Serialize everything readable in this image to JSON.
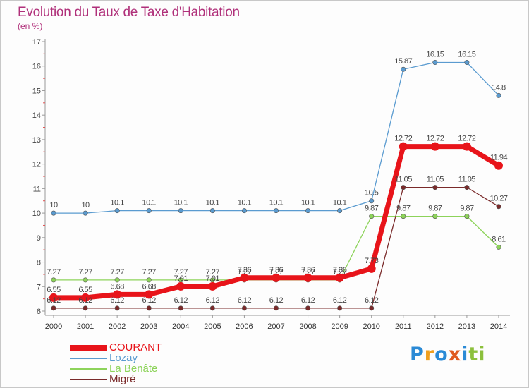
{
  "title": "Evolution du Taux de Taxe d'Habitation",
  "unit": "(en %)",
  "brand": {
    "letters": [
      "P",
      "r",
      "o",
      "x",
      "i",
      "t",
      "i"
    ],
    "colors": [
      "#2a8ad6",
      "#f0a020",
      "#2a8ad6",
      "#e05a20",
      "#2a8ad6",
      "#8cc03c",
      "#8cc03c"
    ]
  },
  "chart_data": {
    "type": "line",
    "title": "Evolution du Taux de Taxe d'Habitation",
    "ylabel": "(en %)",
    "xlabel": "",
    "ylim": [
      6,
      17
    ],
    "yticks": [
      6,
      7,
      8,
      9,
      10,
      11,
      12,
      13,
      14,
      15,
      16,
      17
    ],
    "x": [
      "2000",
      "2001",
      "2002",
      "2003",
      "2004",
      "2005",
      "2006",
      "2007",
      "2008",
      "2009",
      "2010",
      "2011",
      "2012",
      "2013",
      "2014"
    ],
    "grid": false,
    "legend_position": "bottom-left",
    "series": [
      {
        "name": "COURANT",
        "color": "#e8141a",
        "values": [
          6.55,
          6.55,
          6.68,
          6.68,
          7.01,
          7.01,
          7.36,
          7.36,
          7.36,
          7.36,
          7.73,
          12.72,
          12.72,
          12.72,
          11.94
        ],
        "labels": [
          "6.55",
          "6.55",
          "6.68",
          "6.68",
          "7.01",
          "7.01",
          "7.36",
          "7.36",
          "7.36",
          "7.36",
          "7.73",
          "12.72",
          "12.72",
          "12.72",
          "11.94"
        ]
      },
      {
        "name": "Lozay",
        "color": "#5a9bd0",
        "values": [
          10,
          10,
          10.1,
          10.1,
          10.1,
          10.1,
          10.1,
          10.1,
          10.1,
          10.1,
          10.5,
          15.87,
          16.15,
          16.15,
          14.8
        ],
        "labels": [
          "10",
          "10",
          "10.1",
          "10.1",
          "10.1",
          "10.1",
          "10.1",
          "10.1",
          "10.1",
          "10.1",
          "10.5",
          "15.87",
          "16.15",
          "16.15",
          "14.8"
        ]
      },
      {
        "name": "La Benâte",
        "color": "#8dd35a",
        "values": [
          7.27,
          7.27,
          7.27,
          7.27,
          7.27,
          7.27,
          7.27,
          7.27,
          7.27,
          7.27,
          9.87,
          9.87,
          9.87,
          9.87,
          8.61
        ],
        "labels": [
          "7.27",
          "7.27",
          "7.27",
          "7.27",
          "7.27",
          "7.27",
          "7.27",
          "7.27",
          "7.27",
          "7.27",
          "9.87",
          "9.87",
          "9.87",
          "9.87",
          "8.61"
        ]
      },
      {
        "name": "Migré",
        "color": "#7a2a2a",
        "values": [
          6.12,
          6.12,
          6.12,
          6.12,
          6.12,
          6.12,
          6.12,
          6.12,
          6.12,
          6.12,
          6.12,
          11.05,
          11.05,
          11.05,
          10.27
        ],
        "labels": [
          "6.12",
          "6.12",
          "6.12",
          "6.12",
          "6.12",
          "6.12",
          "6.12",
          "6.12",
          "6.12",
          "6.12",
          "6.12",
          "11.05",
          "11.05",
          "11.05",
          "10.27"
        ]
      }
    ]
  }
}
